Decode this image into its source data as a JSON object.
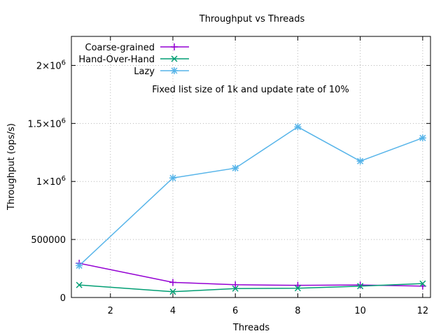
{
  "chart_data": {
    "type": "line",
    "title": "Throughput vs Threads",
    "xlabel": "Threads",
    "ylabel": "Throughput (ops/s)",
    "annotation": "Fixed list size of 1k and update rate of 10%",
    "xlim": [
      0.75,
      12.25
    ],
    "ylim": [
      0,
      2250000
    ],
    "x_ticks": [
      {
        "value": 2,
        "label": "2"
      },
      {
        "value": 4,
        "label": "4"
      },
      {
        "value": 6,
        "label": "6"
      },
      {
        "value": 8,
        "label": "8"
      },
      {
        "value": 10,
        "label": "10"
      },
      {
        "value": 12,
        "label": "12"
      }
    ],
    "y_ticks": [
      {
        "value": 0,
        "mant": "0",
        "exp": ""
      },
      {
        "value": 500000,
        "mant": "500000",
        "exp": ""
      },
      {
        "value": 1000000,
        "mant": "1×10",
        "exp": "6"
      },
      {
        "value": 1500000,
        "mant": "1.5×10",
        "exp": "6"
      },
      {
        "value": 2000000,
        "mant": "2×10",
        "exp": "6"
      }
    ],
    "grid": true,
    "legend_position": "top-left",
    "x": [
      1,
      4,
      6,
      8,
      10,
      12
    ],
    "series": [
      {
        "name": "Coarse-grained",
        "color": "#9400d3",
        "marker": "plus",
        "values": [
          295000,
          130000,
          110000,
          105000,
          108000,
          98000
        ]
      },
      {
        "name": "Hand-Over-Hand",
        "color": "#009e73",
        "marker": "cross",
        "values": [
          108000,
          50000,
          77000,
          80000,
          98000,
          120000
        ]
      },
      {
        "name": "Lazy",
        "color": "#56b4e9",
        "marker": "star",
        "values": [
          275000,
          1030000,
          1115000,
          1470000,
          1175000,
          1375000
        ]
      }
    ]
  }
}
